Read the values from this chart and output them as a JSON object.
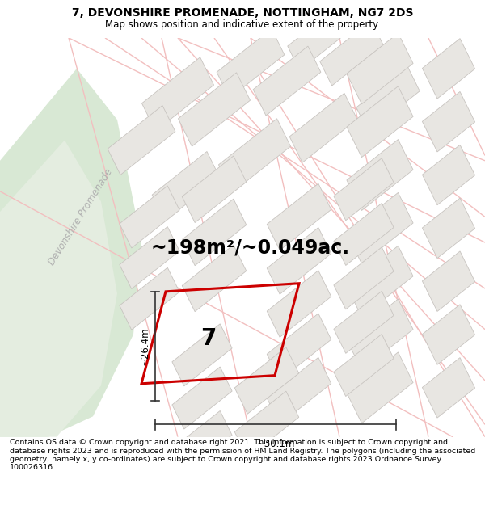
{
  "title": "7, DEVONSHIRE PROMENADE, NOTTINGHAM, NG7 2DS",
  "subtitle": "Map shows position and indicative extent of the property.",
  "area_label": "~198m²/~0.049ac.",
  "plot_number": "7",
  "width_label": "~30.1m",
  "height_label": "~26.4m",
  "street_label": "Devonshire Promenade",
  "footer": "Contains OS data © Crown copyright and database right 2021. This information is subject to Crown copyright and database rights 2023 and is reproduced with the permission of HM Land Registry. The polygons (including the associated geometry, namely x, y co-ordinates) are subject to Crown copyright and database rights 2023 Ordnance Survey 100026316.",
  "map_bg": "#f7f6f4",
  "road_color": "#f2bfbf",
  "building_color": "#e8e6e2",
  "building_stroke": "#c8c4c0",
  "green_color": "#d8e8d4",
  "green_edge": "#c8dcc4",
  "plot_color": "#cc0000",
  "plot_lw": 2.2,
  "dim_color": "#333333",
  "title_fontsize": 10,
  "subtitle_fontsize": 8.5,
  "area_fontsize": 17,
  "number_fontsize": 20,
  "dim_fontsize": 8.5,
  "footer_fontsize": 6.8,
  "street_fontsize": 8.5,
  "figsize": [
    6.0,
    6.25
  ],
  "dpi": 100
}
